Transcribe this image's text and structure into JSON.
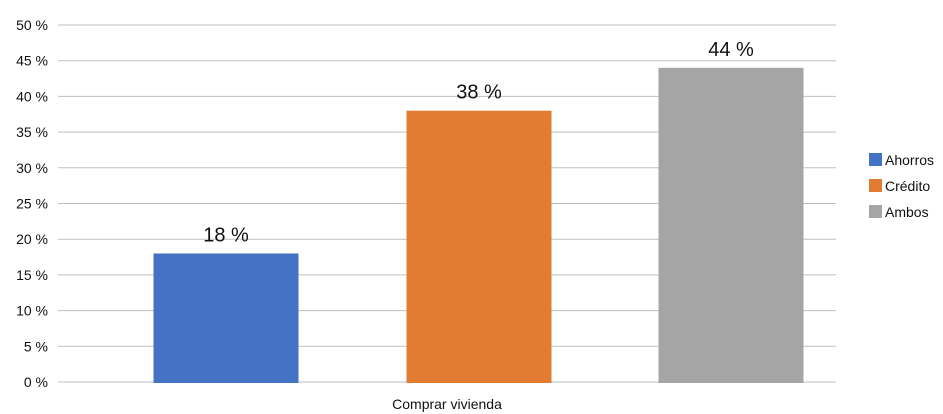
{
  "chart_data": {
    "type": "bar",
    "categories": [
      "Comprar vivienda"
    ],
    "series": [
      {
        "name": "Ahorros",
        "values": [
          18
        ],
        "color": "#4472c4",
        "data_label": "18 %"
      },
      {
        "name": "Crédito",
        "values": [
          38
        ],
        "color": "#e37c33",
        "data_label": "38 %"
      },
      {
        "name": "Ambos",
        "values": [
          44
        ],
        "color": "#a5a5a5",
        "data_label": "44 %"
      }
    ],
    "ylim": [
      0,
      50
    ],
    "yticks": [
      0,
      5,
      10,
      15,
      20,
      25,
      30,
      35,
      40,
      45,
      50
    ],
    "ytick_labels": [
      "0 %",
      "5 %",
      "10 %",
      "15 %",
      "20 %",
      "25 %",
      "30 %",
      "35 %",
      "40 %",
      "45 %",
      "50 %"
    ],
    "grid": true,
    "grid_color": "#bfbfbf",
    "legend_position": "right"
  }
}
